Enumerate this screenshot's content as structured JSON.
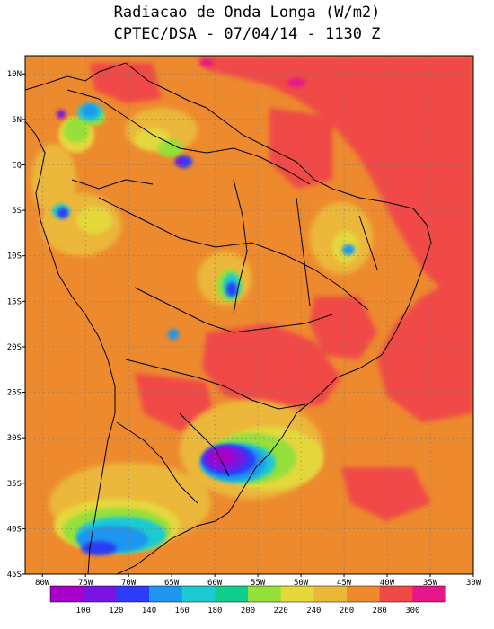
{
  "title": {
    "line1": "Radiacao de Onda Longa (W/m2)",
    "line2": "CPTEC/DSA - 07/04/14 - 1130 Z"
  },
  "map": {
    "lon_range": [
      -82,
      -30
    ],
    "lat_range": [
      -45,
      12
    ],
    "lat_ticks": [
      {
        "value": 10,
        "label": "10N"
      },
      {
        "value": 5,
        "label": "5N"
      },
      {
        "value": 0,
        "label": "EQ"
      },
      {
        "value": -5,
        "label": "5S"
      },
      {
        "value": -10,
        "label": "10S"
      },
      {
        "value": -15,
        "label": "15S"
      },
      {
        "value": -20,
        "label": "20S"
      },
      {
        "value": -25,
        "label": "25S"
      },
      {
        "value": -30,
        "label": "30S"
      },
      {
        "value": -35,
        "label": "35S"
      },
      {
        "value": -40,
        "label": "40S"
      },
      {
        "value": -45,
        "label": "45S"
      }
    ],
    "lon_ticks": [
      {
        "value": -80,
        "label": "80W"
      },
      {
        "value": -75,
        "label": "75W"
      },
      {
        "value": -70,
        "label": "70W"
      },
      {
        "value": -65,
        "label": "65W"
      },
      {
        "value": -60,
        "label": "60W"
      },
      {
        "value": -55,
        "label": "55W"
      },
      {
        "value": -50,
        "label": "50W"
      },
      {
        "value": -45,
        "label": "45W"
      },
      {
        "value": -40,
        "label": "40W"
      },
      {
        "value": -35,
        "label": "35W"
      },
      {
        "value": -30,
        "label": "30W"
      }
    ],
    "background_color": "#ed8a2e"
  },
  "colorbar": {
    "colors": [
      "#a800c8",
      "#7a14e0",
      "#2d3cf5",
      "#1e96f0",
      "#1ecad2",
      "#10cf8c",
      "#96e03a",
      "#e4d83c",
      "#ebb83a",
      "#ed8a2e",
      "#f04a46",
      "#e6178a"
    ],
    "labels": [
      "100",
      "120",
      "140",
      "160",
      "180",
      "200",
      "220",
      "240",
      "260",
      "280",
      "300"
    ]
  }
}
